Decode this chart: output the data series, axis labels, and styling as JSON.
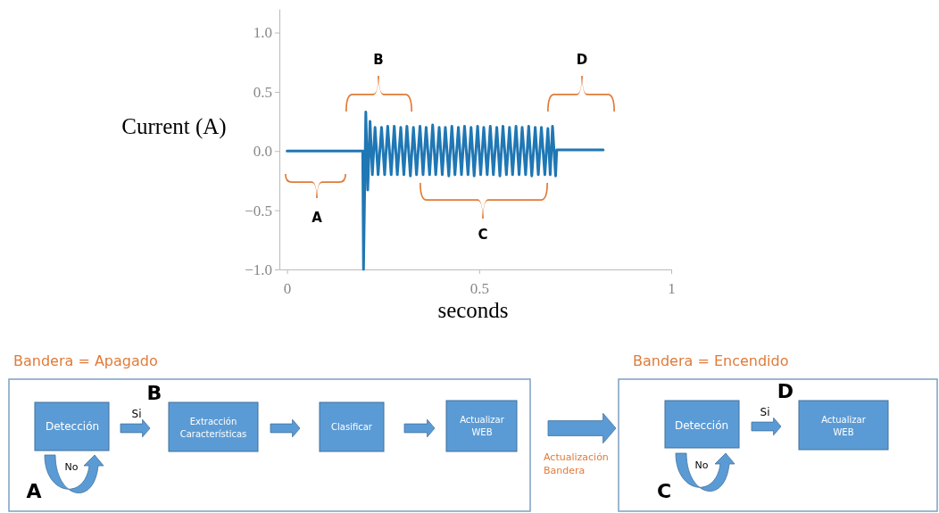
{
  "chart_data": {
    "type": "line",
    "xlabel": "seconds",
    "ylabel": "Current (A)",
    "xlim": [
      -0.02,
      1
    ],
    "xticks": [
      0,
      0.5,
      1
    ],
    "ylim": [
      -1,
      1.2
    ],
    "yticks": [
      {
        "value": -1,
        "label": "−1.0"
      },
      {
        "value": -0.5,
        "label": "−0.5"
      },
      {
        "value": 0,
        "label": "0.0"
      },
      0.5,
      {
        "value": 1,
        "label": "1.0"
      }
    ],
    "grid": false,
    "series": [
      {
        "color": "#1f77b4",
        "x": [
          0,
          0.197,
          0.199,
          0.205,
          0.21,
          0.216,
          0.222,
          0.229,
          0.237,
          0.246,
          0.254,
          0.262,
          0.271,
          0.279,
          0.287,
          0.296,
          0.304,
          0.312,
          0.321,
          0.329,
          0.337,
          0.346,
          0.354,
          0.362,
          0.371,
          0.379,
          0.387,
          0.396,
          0.404,
          0.412,
          0.421,
          0.429,
          0.437,
          0.446,
          0.454,
          0.462,
          0.471,
          0.479,
          0.487,
          0.496,
          0.504,
          0.512,
          0.521,
          0.529,
          0.537,
          0.546,
          0.554,
          0.562,
          0.571,
          0.579,
          0.587,
          0.596,
          0.604,
          0.612,
          0.621,
          0.629,
          0.637,
          0.646,
          0.654,
          0.662,
          0.671,
          0.679,
          0.685,
          0.691,
          0.699,
          0.702,
          0.823
        ],
        "values": [
          0,
          0,
          -1,
          0.33,
          -0.33,
          0.25,
          -0.2,
          0.2,
          -0.2,
          0.2,
          -0.2,
          0.21,
          -0.2,
          0.21,
          -0.2,
          0.2,
          -0.2,
          0.21,
          -0.21,
          0.2,
          -0.2,
          0.21,
          -0.2,
          0.2,
          -0.2,
          0.22,
          -0.2,
          0.2,
          -0.2,
          0.2,
          -0.21,
          0.21,
          -0.2,
          0.2,
          -0.2,
          0.21,
          -0.2,
          0.2,
          -0.21,
          0.21,
          -0.2,
          0.2,
          -0.2,
          0.21,
          -0.2,
          0.2,
          -0.21,
          0.21,
          -0.2,
          0.2,
          -0.2,
          0.21,
          -0.2,
          0.2,
          -0.2,
          0.21,
          -0.21,
          0.2,
          -0.2,
          0.2,
          -0.2,
          0.19,
          -0.2,
          0.21,
          -0.21,
          0.01,
          0.01
        ]
      }
    ],
    "annotations": [
      "A",
      "B",
      "C",
      "D",
      "Bandera = Apagado",
      "Detección",
      "Si",
      "B",
      "Extracción Características",
      "Clasificar",
      "Actualizar WEB",
      "No",
      "A",
      "Actualización Bandera",
      "Bandera = Encendido",
      "Detección",
      "Si",
      "D",
      "Actualizar WEB",
      "No",
      "C"
    ]
  }
}
